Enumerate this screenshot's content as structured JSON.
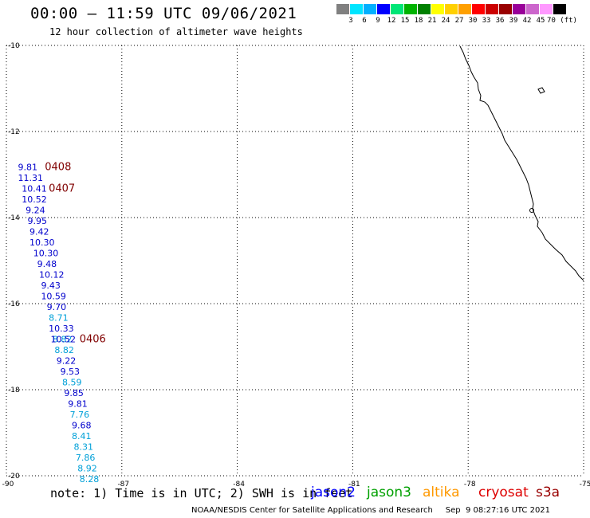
{
  "header": {
    "title": "00:00 – 11:59 UTC 09/06/2021",
    "subtitle": "12 hour collection of altimeter wave heights"
  },
  "colorbar": {
    "colors": [
      "#808080",
      "#00e5ff",
      "#00b0ff",
      "#0000ff",
      "#00e676",
      "#00b300",
      "#008000",
      "#ffff00",
      "#ffd000",
      "#ffa000",
      "#ff0000",
      "#cc0000",
      "#990000",
      "#990099",
      "#cc66cc",
      "#ff99ff",
      "#000000"
    ],
    "labels": [
      "3",
      "6",
      "9",
      "12",
      "15",
      "18",
      "21",
      "24",
      "27",
      "30",
      "33",
      "36",
      "39",
      "42",
      "45",
      "70 (ft)"
    ]
  },
  "map": {
    "lon_range": [
      -90,
      -75
    ],
    "lat_range": [
      -20,
      -10
    ],
    "x_tick_labels": [
      "-90",
      "-87",
      "-84",
      "-81",
      "-78",
      "-75"
    ],
    "y_tick_labels": [
      "-10",
      "-12",
      "-14",
      "-16",
      "-18",
      "-20"
    ],
    "grid": "dotted"
  },
  "wave_points": [
    {
      "text": "9.81",
      "color": "#0000cc",
      "lat": -12.9,
      "lon": -89.7
    },
    {
      "text": "11.31",
      "color": "#0000cc",
      "lat": -13.15,
      "lon": -89.7
    },
    {
      "text": "10.41",
      "color": "#0000cc",
      "lat": -13.4,
      "lon": -89.6
    },
    {
      "text": "10.52",
      "color": "#0000cc",
      "lat": -13.65,
      "lon": -89.6
    },
    {
      "text": "9.24",
      "color": "#0000cc",
      "lat": -13.9,
      "lon": -89.5
    },
    {
      "text": "9.95",
      "color": "#0000cc",
      "lat": -14.15,
      "lon": -89.45
    },
    {
      "text": "9.42",
      "color": "#0000cc",
      "lat": -14.4,
      "lon": -89.4
    },
    {
      "text": "10.30",
      "color": "#0000cc",
      "lat": -14.65,
      "lon": -89.4
    },
    {
      "text": "10.30",
      "color": "#0000cc",
      "lat": -14.9,
      "lon": -89.3
    },
    {
      "text": "9.48",
      "color": "#0000cc",
      "lat": -15.15,
      "lon": -89.2
    },
    {
      "text": "10.12",
      "color": "#0000cc",
      "lat": -15.4,
      "lon": -89.15
    },
    {
      "text": "9.43",
      "color": "#0000cc",
      "lat": -15.65,
      "lon": -89.1
    },
    {
      "text": "10.59",
      "color": "#0000cc",
      "lat": -15.9,
      "lon": -89.1
    },
    {
      "text": "9.70",
      "color": "#0000cc",
      "lat": -16.15,
      "lon": -88.95
    },
    {
      "text": "8.71",
      "color": "#00a0d8",
      "lat": -16.4,
      "lon": -88.9
    },
    {
      "text": "10.33",
      "color": "#0000cc",
      "lat": -16.65,
      "lon": -88.9
    },
    {
      "text": "8.82",
      "color": "#00a0d8",
      "lat": -16.9,
      "lon": -88.8
    },
    {
      "text": "10.52",
      "color": "#0000cc",
      "lat": -16.9,
      "lon": -88.85
    },
    {
      "text": "8.82",
      "color": "#00a0d8",
      "lat": -17.15,
      "lon": -88.75
    },
    {
      "text": "9.22",
      "color": "#0000cc",
      "lat": -17.4,
      "lon": -88.7
    },
    {
      "text": "9.53",
      "color": "#0000cc",
      "lat": -17.65,
      "lon": -88.6
    },
    {
      "text": "8.59",
      "color": "#00a0d8",
      "lat": -17.9,
      "lon": -88.55
    },
    {
      "text": "9.85",
      "color": "#0000cc",
      "lat": -18.15,
      "lon": -88.5
    },
    {
      "text": "9.81",
      "color": "#0000cc",
      "lat": -18.4,
      "lon": -88.4
    },
    {
      "text": "7.76",
      "color": "#00a0d8",
      "lat": -18.65,
      "lon": -88.35
    },
    {
      "text": "9.68",
      "color": "#0000cc",
      "lat": -18.9,
      "lon": -88.3
    },
    {
      "text": "8.41",
      "color": "#00a0d8",
      "lat": -19.15,
      "lon": -88.3
    },
    {
      "text": "8.31",
      "color": "#00a0d8",
      "lat": -19.4,
      "lon": -88.25
    },
    {
      "text": "7.86",
      "color": "#00a0d8",
      "lat": -19.65,
      "lon": -88.2
    },
    {
      "text": "8.92",
      "color": "#00a0d8",
      "lat": -19.9,
      "lon": -88.15
    },
    {
      "text": "8.28",
      "color": "#00a0d8",
      "lat": -20.15,
      "lon": -88.1
    }
  ],
  "time_labels": [
    {
      "text": "0408",
      "color": "#800000",
      "lat": -12.9,
      "lon": -89.0
    },
    {
      "text": "0407",
      "color": "#800000",
      "lat": -13.4,
      "lon": -88.9
    },
    {
      "text": "0406",
      "color": "#800000",
      "lat": -16.9,
      "lon": -88.1
    }
  ],
  "footer": {
    "note": "note: 1) Time is in UTC; 2) SWH is in feet",
    "legend": [
      {
        "label": "jason2",
        "color": "#0000ff"
      },
      {
        "label": "jason3",
        "color": "#00a000"
      },
      {
        "label": "altika",
        "color": "#ff9900"
      },
      {
        "label": "cryosat",
        "color": "#dd0000"
      },
      {
        "label": "s3a",
        "color": "#990000"
      }
    ],
    "credit": "NOAA/NESDIS Center for Satellite Applications and Research     Sep  9 08:27:16 UTC 2021"
  }
}
